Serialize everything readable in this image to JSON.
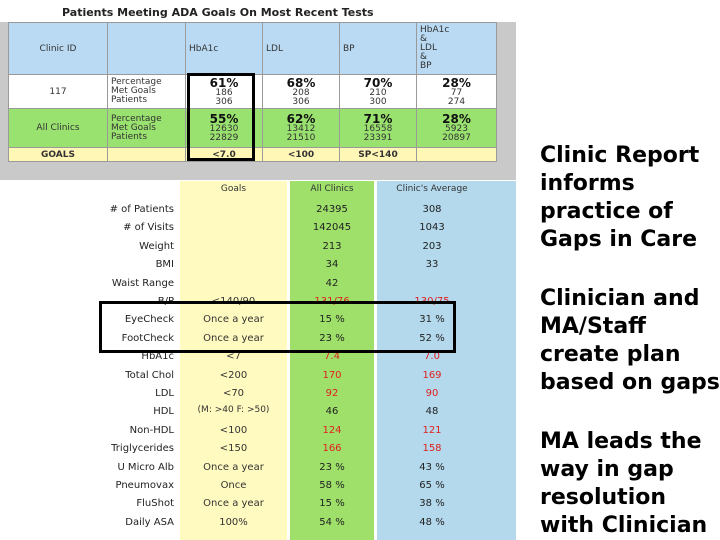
{
  "top_table": {
    "title": "Patients Meeting ADA Goals On Most Recent Tests",
    "headers": [
      "Clinic ID",
      "",
      "HbA1c",
      "LDL",
      "BP",
      [
        "HbA1c",
        "&",
        "LDL",
        "&",
        "BP"
      ]
    ],
    "clinic_row": {
      "id": "117",
      "metric": [
        "Percentage",
        "Met Goals",
        "Patients"
      ],
      "values": [
        [
          "61%",
          "186",
          "306"
        ],
        [
          "68%",
          "208",
          "306"
        ],
        [
          "70%",
          "210",
          "300"
        ],
        [
          "28%",
          "77",
          "274"
        ]
      ]
    },
    "all_row": {
      "id": "All Clinics",
      "metric": [
        "Percentage",
        "Met Goals",
        "Patients"
      ],
      "values": [
        [
          "55%",
          "12630",
          "22829"
        ],
        [
          "62%",
          "13412",
          "21510"
        ],
        [
          "71%",
          "16558",
          "23391"
        ],
        [
          "28%",
          "5923",
          "20897"
        ]
      ]
    },
    "goals_row": {
      "label": "GOALS",
      "values": [
        "<7.0",
        "<100",
        "SP<140",
        ""
      ]
    }
  },
  "bottom_table": {
    "headers": {
      "goals": "Goals",
      "all": "All Clinics",
      "avg": "Clinic's Average"
    },
    "rows": [
      {
        "label": "# of Patients",
        "goal": "",
        "all": "24395",
        "avg": "308",
        "all_red": false,
        "avg_red": false
      },
      {
        "label": "# of Visits",
        "goal": "",
        "all": "142045",
        "avg": "1043",
        "all_red": false,
        "avg_red": false
      },
      {
        "label": "Weight",
        "goal": "",
        "all": "213",
        "avg": "203",
        "all_red": false,
        "avg_red": false
      },
      {
        "label": "BMI",
        "goal": "",
        "all": "34",
        "avg": "33",
        "all_red": false,
        "avg_red": false
      },
      {
        "label": "Waist Range",
        "goal": "",
        "all": "42",
        "avg": "",
        "all_red": false,
        "avg_red": false
      },
      {
        "label": "B/P",
        "goal": "<140/90",
        "all": "131/76",
        "avg": "130/75",
        "all_red": true,
        "avg_red": true
      },
      {
        "label": "EyeCheck",
        "goal": "Once a year",
        "all": "15 %",
        "avg": "31 %",
        "all_red": false,
        "avg_red": false
      },
      {
        "label": "FootCheck",
        "goal": "Once a year",
        "all": "23 %",
        "avg": "52 %",
        "all_red": false,
        "avg_red": false
      },
      {
        "label": "HbA1c",
        "goal": "<7",
        "all": "7.4",
        "avg": "7.0",
        "all_red": true,
        "avg_red": true
      },
      {
        "label": "Total Chol",
        "goal": "<200",
        "all": "170",
        "avg": "169",
        "all_red": true,
        "avg_red": true
      },
      {
        "label": "LDL",
        "goal": "<70",
        "all": "92",
        "avg": "90",
        "all_red": true,
        "avg_red": true
      },
      {
        "label": "HDL",
        "goal": "(M: >40 F: >50)",
        "all": "46",
        "avg": "48",
        "all_red": false,
        "avg_red": false
      },
      {
        "label": "Non-HDL",
        "goal": "<100",
        "all": "124",
        "avg": "121",
        "all_red": true,
        "avg_red": true
      },
      {
        "label": "Triglycerides",
        "goal": "<150",
        "all": "166",
        "avg": "158",
        "all_red": true,
        "avg_red": true
      },
      {
        "label": "U Micro Alb",
        "goal": "Once a year",
        "all": "23 %",
        "avg": "43 %",
        "all_red": false,
        "avg_red": false
      },
      {
        "label": "Pneumovax",
        "goal": "Once",
        "all": "58 %",
        "avg": "65 %",
        "all_red": false,
        "avg_red": false
      },
      {
        "label": "FluShot",
        "goal": "Once a year",
        "all": "15 %",
        "avg": "38 %",
        "all_red": false,
        "avg_red": false
      },
      {
        "label": "Daily ASA",
        "goal": "100%",
        "all": "54 %",
        "avg": "48 %",
        "all_red": false,
        "avg_red": false
      }
    ]
  },
  "side_text": [
    "Clinic Report informs practice of Gaps in Care",
    "Clinician and MA/Staff create plan based on gaps",
    "MA leads the way in gap resolution with Clinician"
  ]
}
